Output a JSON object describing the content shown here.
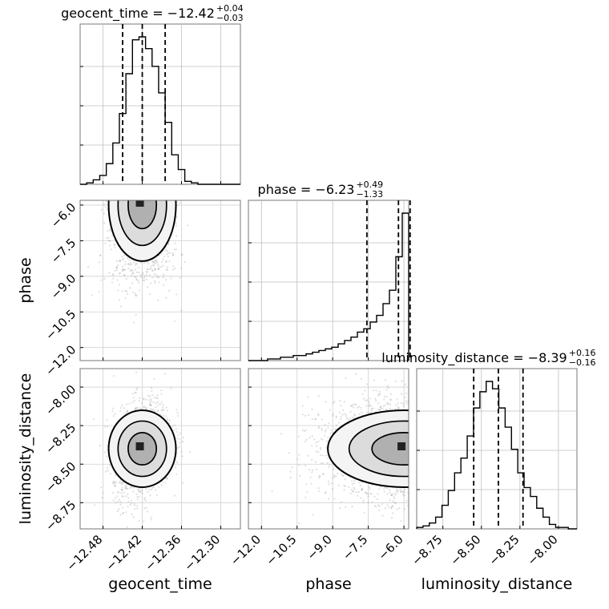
{
  "chart_data": {
    "type": "corner",
    "parameters": [
      "geocent_time",
      "phase",
      "luminosity_distance"
    ],
    "titles": [
      {
        "param": "geocent_time",
        "main": "geocent_time = −12.42",
        "sup": "+0.04",
        "sub": "−0.03"
      },
      {
        "param": "phase",
        "main": "phase = −6.23",
        "sup": "+0.49",
        "sub": "−1.33"
      },
      {
        "param": "luminosity_distance",
        "main": "luminosity_distance = −8.39",
        "sup": "+0.16",
        "sub": "−0.16"
      }
    ],
    "xlabels": [
      "geocent_time",
      "phase",
      "luminosity_distance"
    ],
    "ylabels": [
      "",
      "phase",
      "luminosity_distance"
    ],
    "ranges": {
      "geocent_time": [
        -12.515,
        -12.27
      ],
      "phase": [
        -12.55,
        -5.8
      ],
      "luminosity_distance": [
        -8.92,
        -7.88
      ]
    },
    "ticks": {
      "geocent_time": {
        "values": [
          -12.48,
          -12.42,
          -12.36,
          -12.3
        ],
        "labels": [
          "−12.48",
          "−12.42",
          "−12.36",
          "−12.30"
        ]
      },
      "phase": {
        "values": [
          -12.0,
          -10.5,
          -9.0,
          -7.5,
          -6.0
        ],
        "labels": [
          "−12.0",
          "−10.5",
          "−9.0",
          "−7.5",
          "−6.0"
        ]
      },
      "luminosity_distance": {
        "values": [
          -8.75,
          -8.5,
          -8.25,
          -8.0
        ],
        "labels": [
          "−8.75",
          "−8.50",
          "−8.25",
          "−8.00"
        ]
      }
    },
    "quantiles": {
      "geocent_time": [
        -12.45,
        -12.42,
        -12.385
      ],
      "phase": [
        -7.56,
        -6.23,
        -5.74
      ],
      "luminosity_distance": [
        -8.55,
        -8.39,
        -8.23
      ]
    },
    "histograms": {
      "geocent_time": {
        "bins": [
          -12.515,
          -12.505,
          -12.495,
          -12.485,
          -12.475,
          -12.465,
          -12.455,
          -12.445,
          -12.435,
          -12.425,
          -12.415,
          -12.405,
          -12.395,
          -12.385,
          -12.375,
          -12.365,
          -12.355,
          -12.345,
          -12.335,
          -12.325,
          -12.315,
          -12.305,
          -12.295,
          -12.285,
          -12.275,
          -12.27
        ],
        "counts": [
          0,
          1,
          3,
          6,
          14,
          28,
          48,
          75,
          98,
          100,
          92,
          80,
          62,
          42,
          20,
          10,
          2,
          1,
          0,
          0,
          0,
          0,
          0,
          0,
          0
        ]
      },
      "phase": {
        "bins": [
          -12.55,
          -12.28,
          -12.01,
          -11.74,
          -11.47,
          -11.2,
          -10.93,
          -10.66,
          -10.39,
          -10.12,
          -9.85,
          -9.58,
          -9.31,
          -9.04,
          -8.77,
          -8.5,
          -8.23,
          -7.96,
          -7.69,
          -7.42,
          -7.15,
          -6.88,
          -6.61,
          -6.34,
          -6.07,
          -5.8
        ],
        "counts": [
          0,
          0,
          0,
          1,
          1,
          2,
          2,
          3,
          3,
          4,
          5,
          6,
          7,
          8,
          10,
          12,
          14,
          17,
          19,
          23,
          27,
          34,
          42,
          62,
          88
        ]
      },
      "luminosity_distance": {
        "bins": [
          -8.92,
          -8.879,
          -8.838,
          -8.797,
          -8.756,
          -8.715,
          -8.674,
          -8.633,
          -8.592,
          -8.551,
          -8.51,
          -8.469,
          -8.428,
          -8.387,
          -8.346,
          -8.305,
          -8.264,
          -8.223,
          -8.182,
          -8.141,
          -8.1,
          -8.059,
          -8.018,
          -7.977,
          -7.936,
          -7.88
        ],
        "counts": [
          1,
          2,
          4,
          8,
          16,
          26,
          38,
          48,
          63,
          82,
          93,
          100,
          95,
          82,
          69,
          54,
          38,
          28,
          22,
          14,
          8,
          3,
          1,
          1,
          0
        ]
      }
    },
    "grid": true
  }
}
